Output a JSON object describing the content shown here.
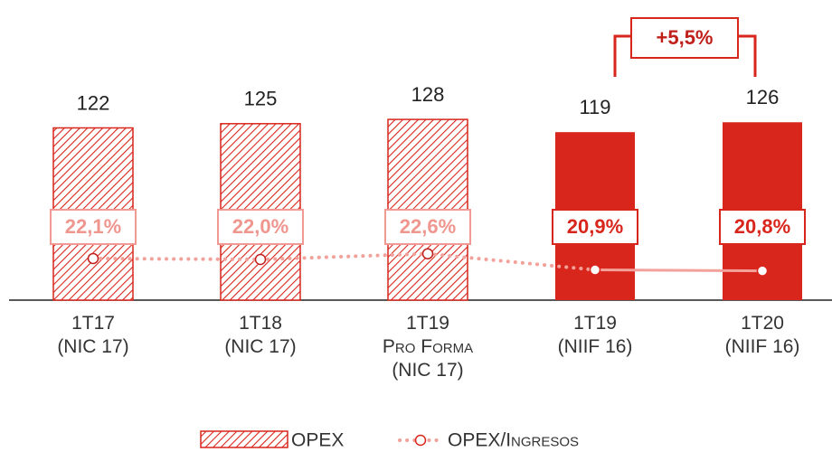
{
  "chart_data": {
    "type": "bar",
    "categories": [
      "1T17\n(NIC 17)",
      "1T18\n(NIC 17)",
      "1T19\nPro Forma\n(NIC 17)",
      "1T19\n(NIIF 16)",
      "1T20\n(NIIF 16)"
    ],
    "ylim": [
      0,
      130
    ],
    "y2lim": [
      10,
      30
    ],
    "hatched": [
      true,
      true,
      true,
      false,
      false
    ],
    "series": [
      {
        "name": "OPEX",
        "type": "bar",
        "color": "#d9261c",
        "values": [
          122,
          125,
          128,
          119,
          126
        ]
      },
      {
        "name": "OPEX/Ingresos",
        "type": "line",
        "axis": "y2",
        "color": "#f2a19b",
        "values": [
          22.1,
          22.0,
          22.6,
          20.9,
          20.8
        ],
        "value_labels": [
          "22,1%",
          "22,0%",
          "22,6%",
          "20,9%",
          "20,8%"
        ]
      }
    ],
    "annotation": "+5,5%"
  }
}
